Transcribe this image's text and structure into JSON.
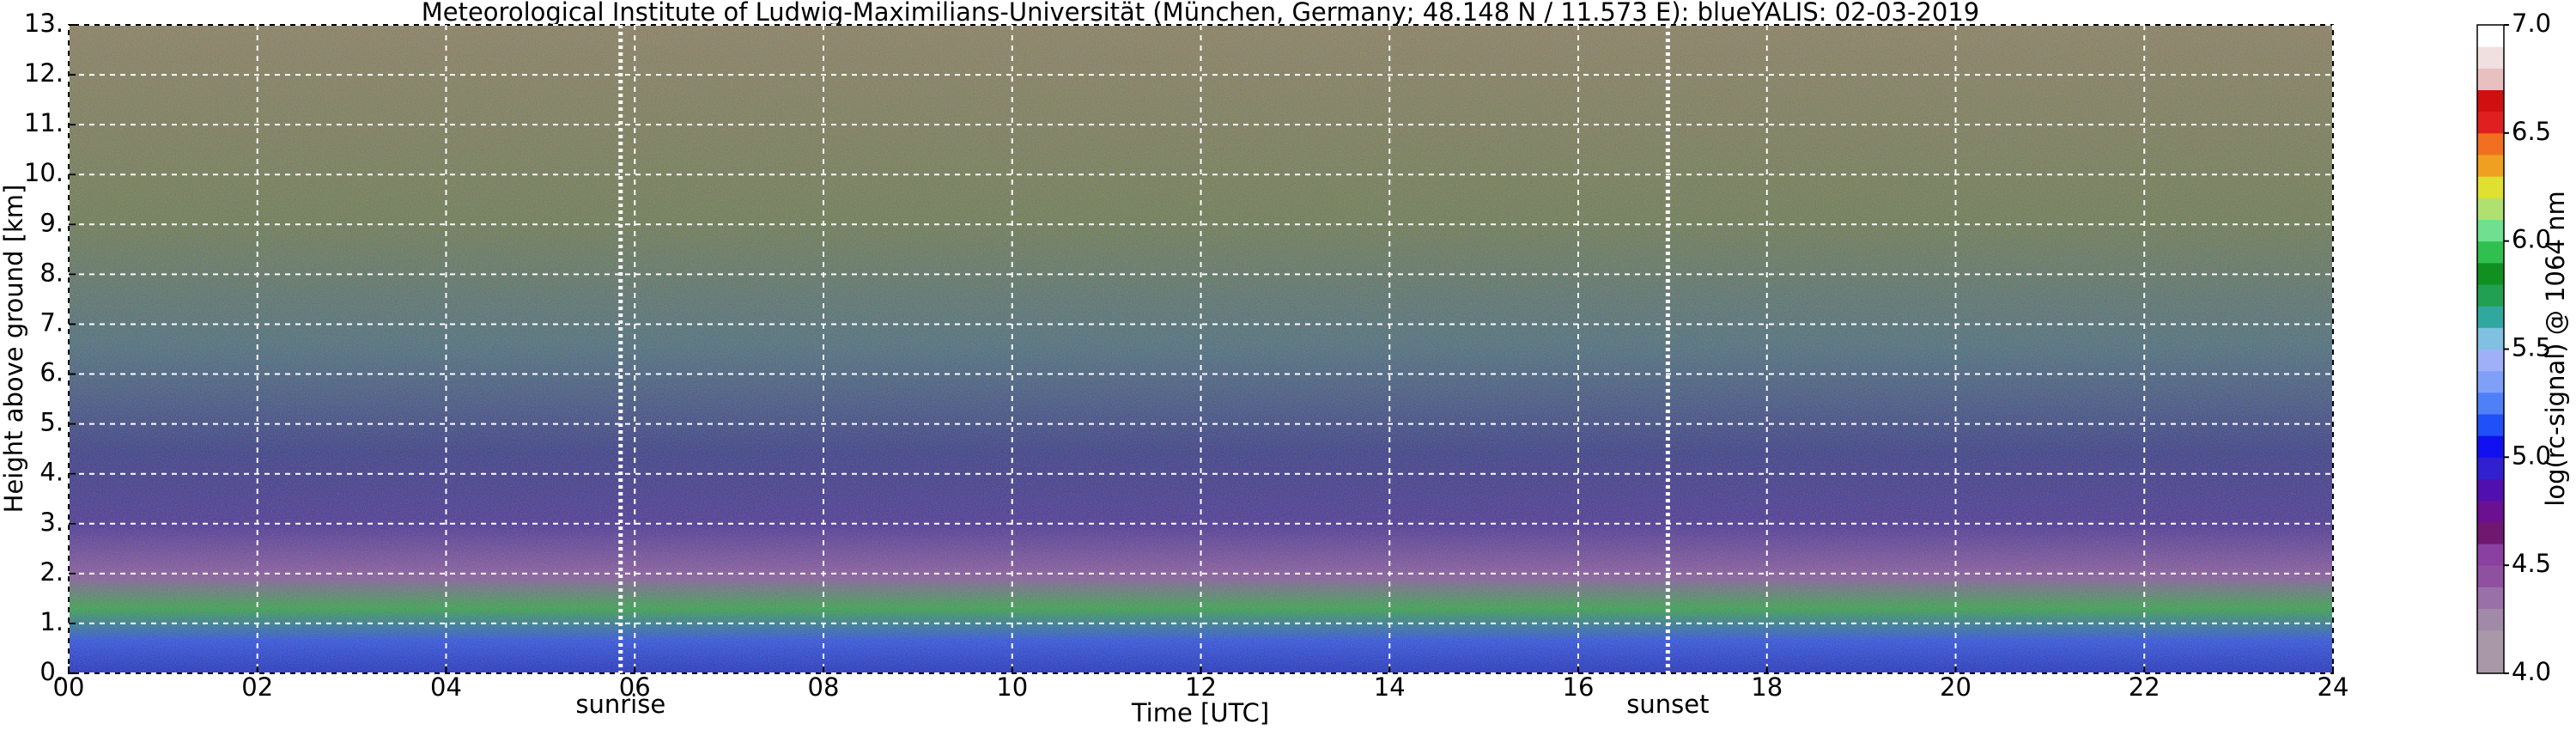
{
  "chart_data": {
    "type": "heatmap",
    "title": "Meteorological Institute of Ludwig-Maximilians-Universität (München, Germany; 48.148 N / 11.573 E):    blueYALIS: 02-03-2019",
    "x_label": "Time [UTC]",
    "y_label": "Height above ground [km]",
    "xlim": [
      0,
      24
    ],
    "xticks": [
      {
        "value": 0,
        "label": "00"
      },
      {
        "value": 2,
        "label": "02"
      },
      {
        "value": 4,
        "label": "04"
      },
      {
        "value": 6,
        "label": "06"
      },
      {
        "value": 8,
        "label": "08"
      },
      10,
      12,
      14,
      16,
      18,
      20,
      22,
      24
    ],
    "ylim": [
      0,
      13
    ],
    "yticks": [
      {
        "value": 0,
        "label": "0."
      },
      {
        "value": 1,
        "label": "1."
      },
      {
        "value": 2,
        "label": "2."
      },
      {
        "value": 3,
        "label": "3."
      },
      {
        "value": 4,
        "label": "4."
      },
      {
        "value": 5,
        "label": "5."
      },
      {
        "value": 6,
        "label": "6."
      },
      {
        "value": 7,
        "label": "7."
      },
      {
        "value": 8,
        "label": "8."
      },
      {
        "value": 9,
        "label": "9."
      },
      {
        "value": 10,
        "label": "10."
      },
      {
        "value": 11,
        "label": "11."
      },
      {
        "value": 12,
        "label": "12."
      },
      {
        "value": 13,
        "label": "13."
      }
    ],
    "grid": true,
    "annotations": [
      {
        "text": "sunrise",
        "x": 5.85
      },
      {
        "text": "sunset",
        "x": 16.95
      }
    ],
    "colorbar": {
      "label": "log(rc-signal) @ 1064 nm",
      "clim": [
        4,
        7
      ],
      "ticks": [
        {
          "value": 4,
          "label": "4.0"
        },
        4.5,
        {
          "value": 5,
          "label": "5.0"
        },
        5.5,
        {
          "value": 6,
          "label": "6.0"
        },
        6.5,
        {
          "value": 7,
          "label": "7.0"
        }
      ],
      "colors": [
        "#a898a8",
        "#a898a8",
        "#a08aa8",
        "#9a70a8",
        "#9050a0",
        "#8a40a0",
        "#701870",
        "#6a1090",
        "#5010b0",
        "#3020d0",
        "#1010f0",
        "#2050f8",
        "#5080f8",
        "#80a0f8",
        "#a0b0f8",
        "#80c0e0",
        "#30a8a0",
        "#20a050",
        "#109020",
        "#30c050",
        "#70e090",
        "#b0e070",
        "#e0e030",
        "#f0a020",
        "#f07020",
        "#e02020",
        "#d01010",
        "#e8c0c0",
        "#f0e0e0",
        "#ffffff"
      ]
    }
  }
}
